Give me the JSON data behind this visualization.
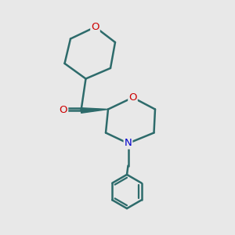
{
  "bg_color": "#e8e8e8",
  "bond_color": "#2d6b6b",
  "O_color": "#cc0000",
  "N_color": "#0000cc",
  "bond_width": 1.8,
  "figsize": [
    3.0,
    3.0
  ],
  "dpi": 100,
  "xlim": [
    0,
    10
  ],
  "ylim": [
    0,
    10
  ]
}
